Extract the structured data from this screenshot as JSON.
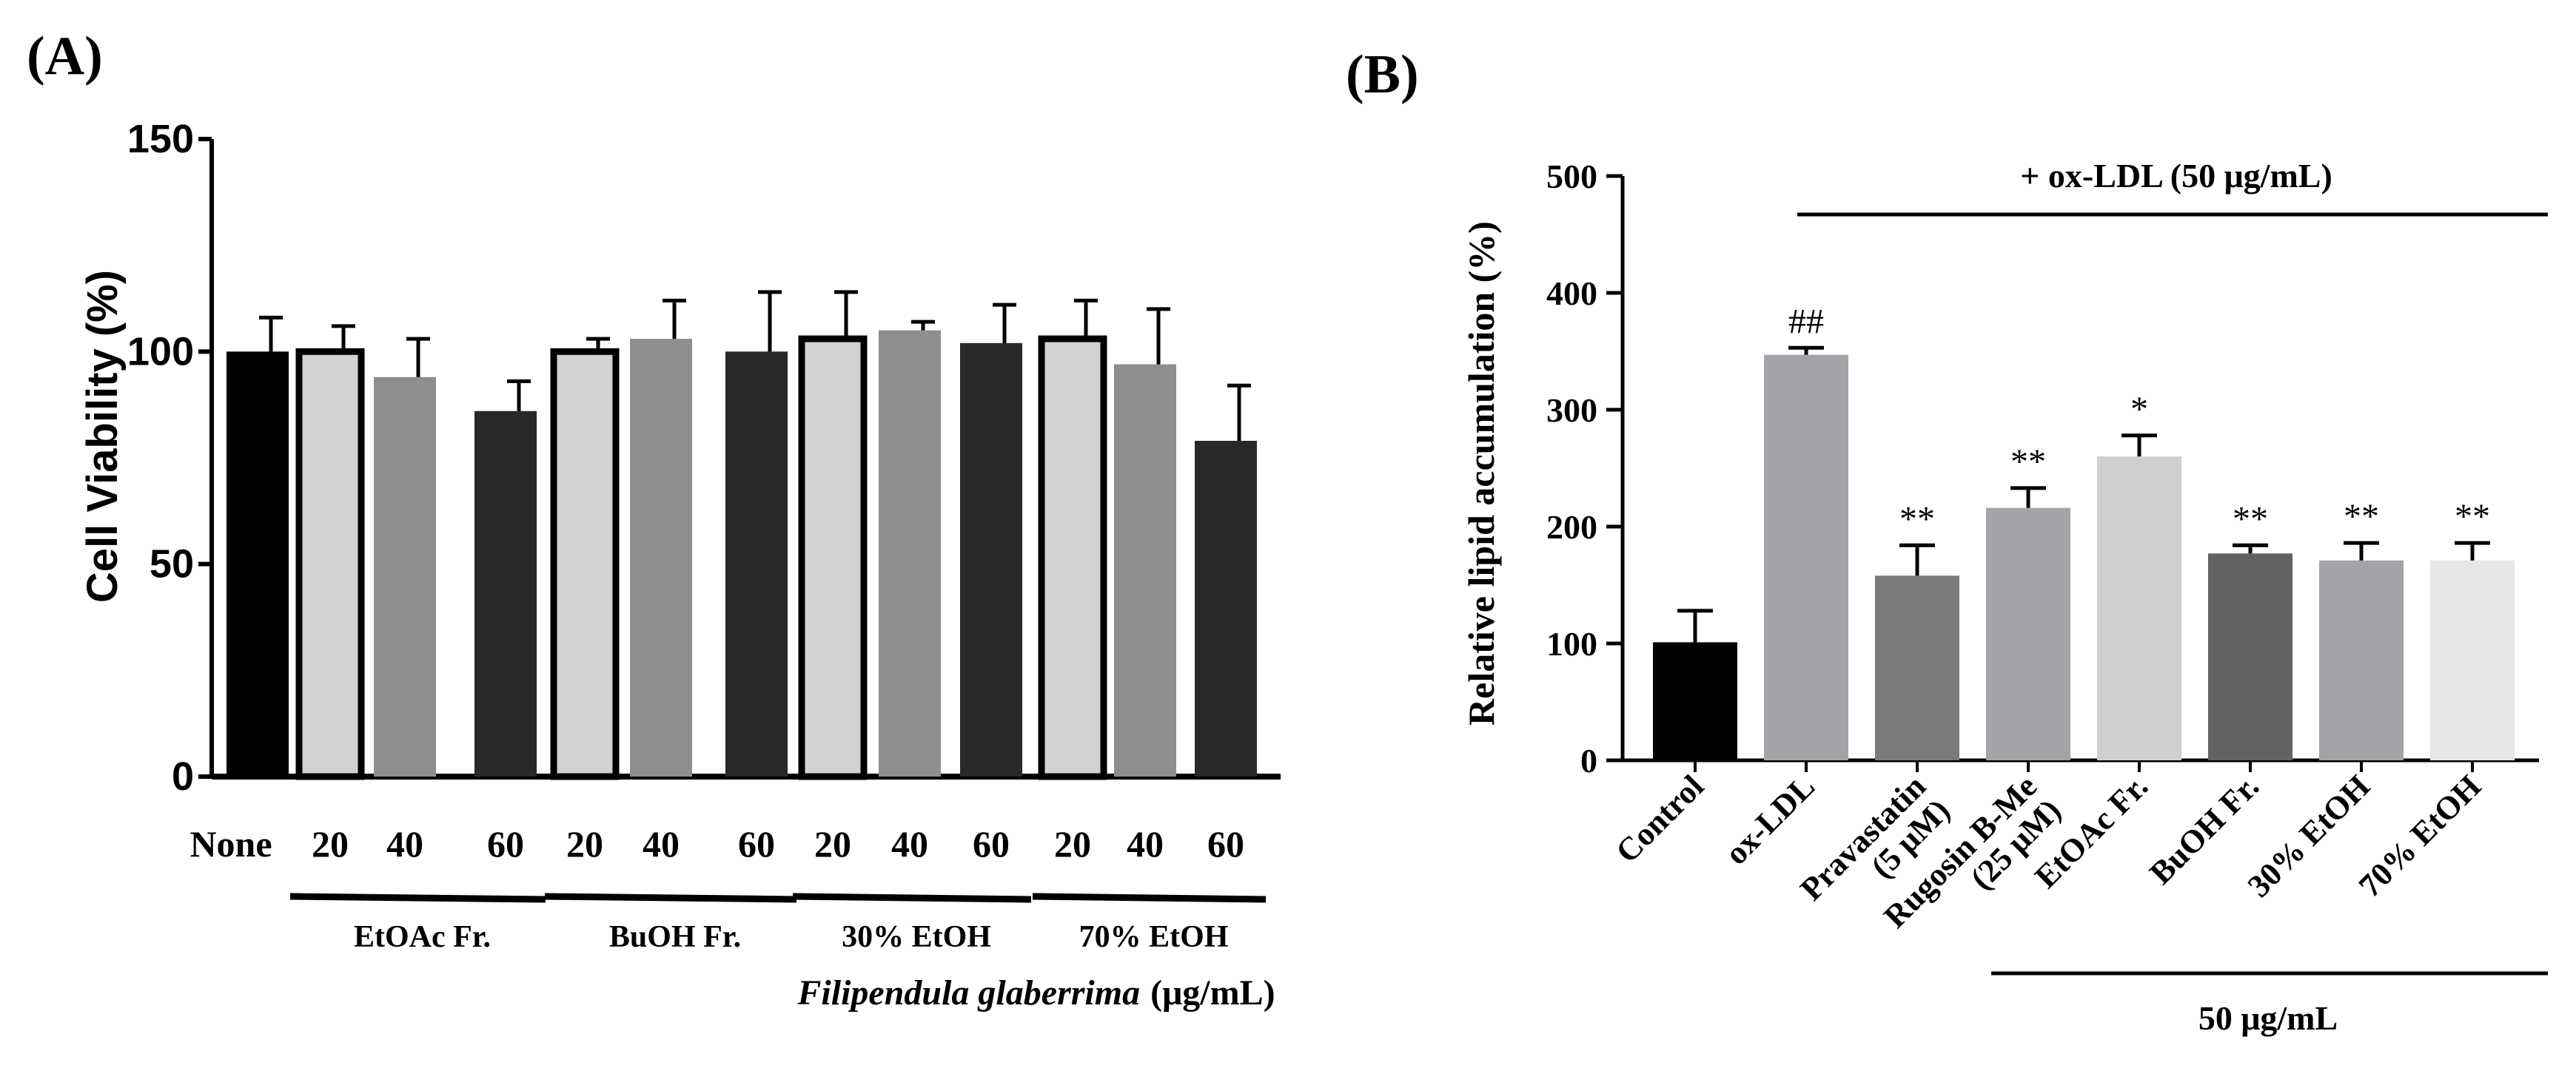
{
  "chart_data": [
    {
      "panel_label": "(A)",
      "type": "bar",
      "ylabel": "Cell Viability (%)",
      "ylim": [
        0,
        150
      ],
      "yticks": [
        "0",
        "50",
        "100",
        "150"
      ],
      "grid": false,
      "categories": [
        "None",
        "20",
        "40",
        "60",
        "20",
        "40",
        "60",
        "20",
        "40",
        "60",
        "20",
        "40",
        "60"
      ],
      "values": [
        100,
        100,
        94,
        86,
        100,
        103,
        100,
        103,
        105,
        102,
        103,
        97,
        79
      ],
      "errors": [
        8,
        6,
        9,
        7,
        3,
        9,
        14,
        11,
        2,
        9,
        9,
        13,
        13
      ],
      "fills": [
        "#000000",
        "#d4d1d4",
        "#8e8e8e",
        "#282828",
        "#d4d1d4",
        "#8e8e8e",
        "#282828",
        "#d4d1d4",
        "#8e8e8e",
        "#282828",
        "#d4d1d4",
        "#8e8e8e",
        "#282828"
      ],
      "outlined": [
        false,
        true,
        false,
        false,
        true,
        false,
        false,
        true,
        false,
        false,
        true,
        false,
        false
      ],
      "groups": [
        {
          "label": "EtOAc Fr.",
          "from": 1,
          "to": 3
        },
        {
          "label": "BuOH Fr.",
          "from": 4,
          "to": 6
        },
        {
          "label": "30% EtOH",
          "from": 7,
          "to": 9
        },
        {
          "label": "70% EtOH",
          "from": 10,
          "to": 12
        }
      ],
      "xlabel_italic": "Filipendula glaberrima",
      "xlabel_unit": "(μg/mL)"
    },
    {
      "panel_label": "(B)",
      "type": "bar",
      "ylabel": "Relative lipid accumulation (%)",
      "ylim": [
        0,
        500
      ],
      "yticks": [
        "0",
        "100",
        "200",
        "300",
        "400",
        "500"
      ],
      "grid": false,
      "categories": [
        {
          "line1": "Control",
          "line2": ""
        },
        {
          "line1": "ox-LDL",
          "line2": ""
        },
        {
          "line1": "Pravastatin",
          "line2": "(5 μM)"
        },
        {
          "line1": "Rugosin B-Me",
          "line2": "(25 μM)"
        },
        {
          "line1": "EtOAc Fr.",
          "line2": ""
        },
        {
          "line1": "BuOH Fr.",
          "line2": ""
        },
        {
          "line1": "30% EtOH",
          "line2": ""
        },
        {
          "line1": "70% EtOH",
          "line2": ""
        }
      ],
      "values": [
        101,
        347,
        158,
        216,
        260,
        177,
        171,
        171
      ],
      "errors": [
        27,
        6,
        26,
        17,
        18,
        7,
        15,
        15
      ],
      "fills": [
        "#000000",
        "#a4a3a8",
        "#7a7a7a",
        "#a4a3a8",
        "#d0d0d0",
        "#626262",
        "#a4a3a8",
        "#e6e6e6"
      ],
      "significance": [
        "",
        "##",
        "**",
        "**",
        "*",
        "**",
        "**",
        "**"
      ],
      "bracket_top": "+ ox-LDL (50 μg/mL)",
      "bracket_bottom": "50 μg/mL"
    }
  ]
}
